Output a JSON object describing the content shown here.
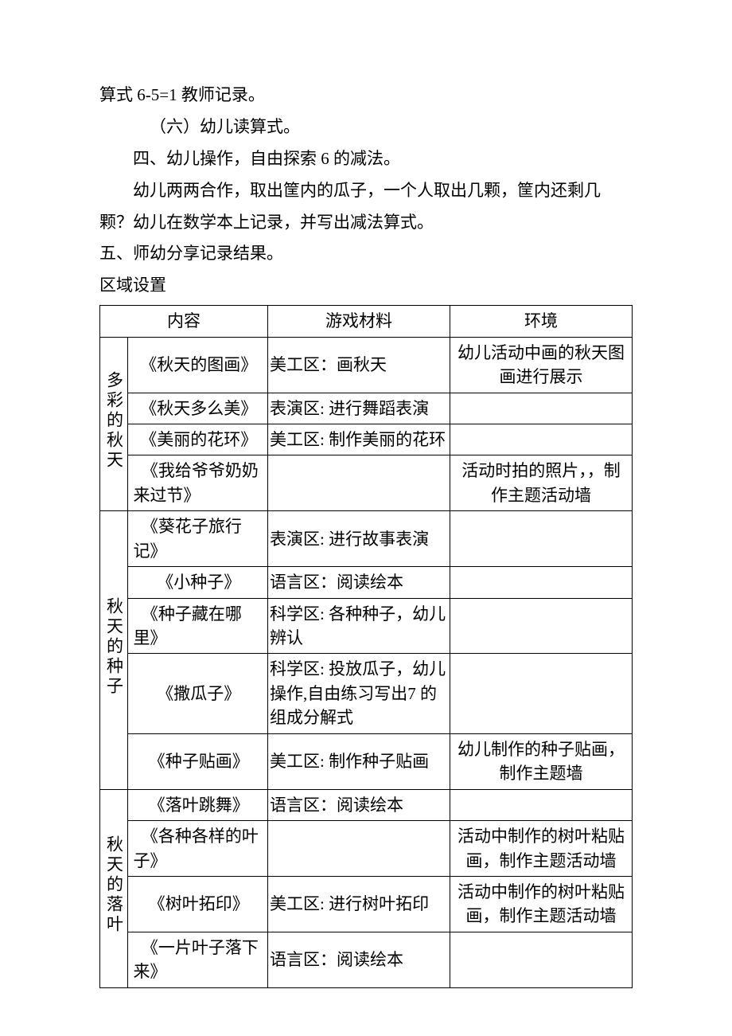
{
  "paragraphs": {
    "p1": "算式 6-5=1 教师记录。",
    "p2": "（六）幼儿读算式。",
    "p3": "四、幼儿操作，自由探索 6 的减法。",
    "p4_a": "幼儿两两合作，取出筐内的瓜子，一个人取出几颗，筐内还剩几",
    "p4_b": "颗？幼儿在数学本上记录，并写出减法算式。",
    "p5": "五、师幼分享记录结果。",
    "p6": "区域设置"
  },
  "table": {
    "headers": {
      "content": "内容",
      "material": "游戏材料",
      "env": "环境"
    },
    "groups": [
      {
        "title": "多彩的秋天",
        "rows": [
          {
            "content": "《秋天的图画》",
            "content_align": "center",
            "material": "美工区：画秋天",
            "env": "幼儿活动中画的秋天图画进行展示"
          },
          {
            "content": "《秋天多么美》",
            "content_align": "center",
            "material": "表演区: 进行舞蹈表演",
            "env": ""
          },
          {
            "content": "《美丽的花环》",
            "content_align": "center",
            "material": "美工区: 制作美丽的花环",
            "env": ""
          },
          {
            "content": "　《我给爷爷奶奶来过节》",
            "content_align": "left",
            "material": "",
            "env": "活动时拍的照片，，制作主题活动墙"
          }
        ]
      },
      {
        "title": "秋天的种子",
        "rows": [
          {
            "content": "　《葵花子旅行记》",
            "content_align": "left",
            "material": "表演区: 进行故事表演",
            "env": ""
          },
          {
            "content": "《小种子》",
            "content_align": "center",
            "material": "语言区：阅读绘本",
            "env": ""
          },
          {
            "content": "　《种子藏在哪里》",
            "content_align": "left",
            "material": "科学区: 各种种子，幼儿辨认",
            "env": ""
          },
          {
            "content": "《撒瓜子》",
            "content_align": "center",
            "material": "科学区: 投放瓜子，幼儿操作,自由练习写出7 的组成分解式",
            "env": ""
          },
          {
            "content": "《种子贴画》",
            "content_align": "center",
            "material": "美工区: 制作种子贴画",
            "env": "幼儿制作的种子贴画，制作主题墙"
          }
        ]
      },
      {
        "title": "秋天的落叶",
        "rows": [
          {
            "content": "《落叶跳舞》",
            "content_align": "center",
            "material": "语言区：阅读绘本",
            "env": ""
          },
          {
            "content": "　《各种各样的叶子》",
            "content_align": "left",
            "material": "",
            "env": "活动中制作的树叶粘贴画，制作主题活动墙"
          },
          {
            "content": "《树叶拓印》",
            "content_align": "center",
            "material": "美工区: 进行树叶拓印",
            "env": "活动中制作的树叶粘贴画，制作主题活动墙"
          },
          {
            "content": "　《一片叶子落下来》",
            "content_align": "left",
            "material": "语言区：阅读绘本",
            "env": ""
          }
        ]
      }
    ]
  }
}
